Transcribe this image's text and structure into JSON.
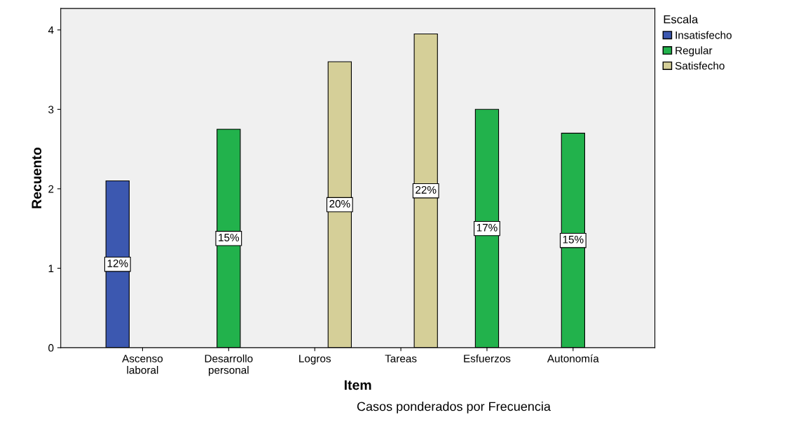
{
  "chart_data": {
    "type": "bar",
    "xlabel": "Item",
    "ylabel": "Recuento",
    "legend_title": "Escala",
    "legend": "top right",
    "grid": false,
    "categories": [
      "Ascenso\nlaboral",
      "Desarrollo\npersonal",
      "Logros",
      "Tareas",
      "Esfuerzos",
      "Autonomía"
    ],
    "series": [
      {
        "name": "Insatisfecho",
        "color": "#3c58b0",
        "values": [
          2.1,
          null,
          null,
          null,
          null,
          null
        ]
      },
      {
        "name": "Regular",
        "color": "#22b24c",
        "values": [
          null,
          2.75,
          null,
          null,
          3.0,
          2.7
        ]
      },
      {
        "name": "Satisfecho",
        "color": "#d5cf98",
        "values": [
          null,
          null,
          3.6,
          3.95,
          null,
          null
        ]
      }
    ],
    "ylim": [
      0,
      4.27
    ],
    "yticks": [
      0,
      1,
      2,
      3,
      4
    ],
    "annotations": [
      "12%",
      "15%",
      "20%",
      "22%",
      "17%",
      "15%",
      "Casos ponderados por Frecuencia"
    ]
  }
}
